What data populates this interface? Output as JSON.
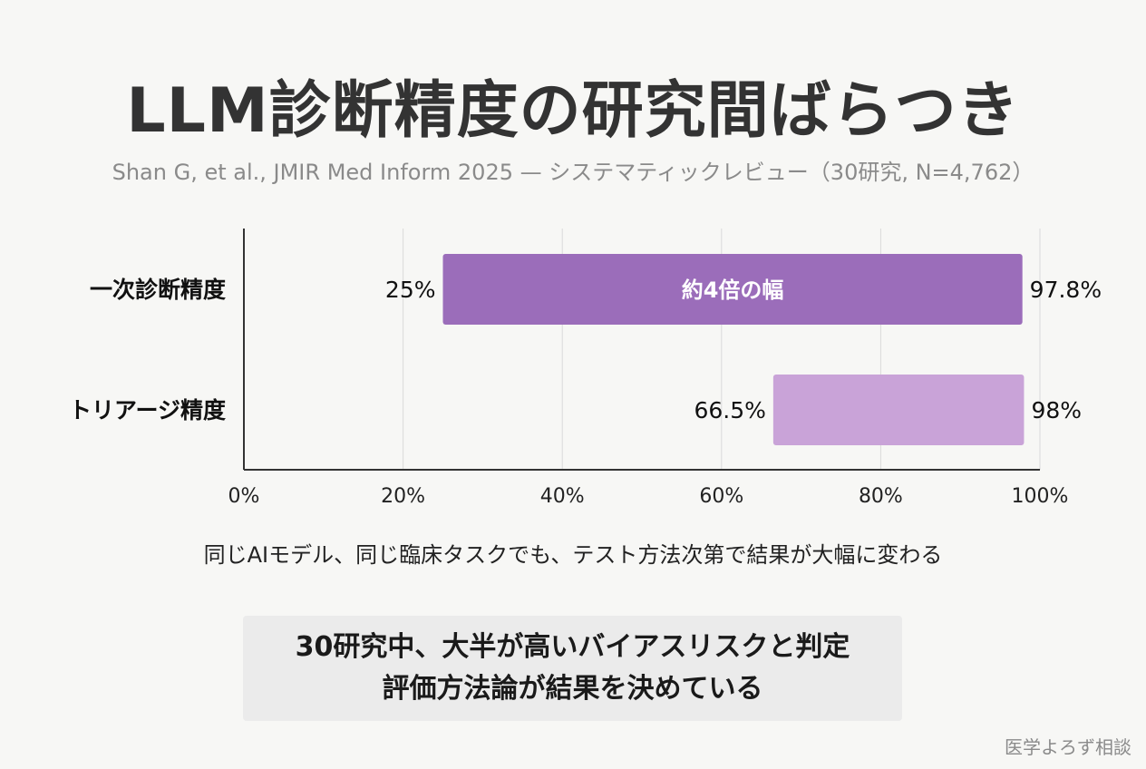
{
  "title": "LLM診断精度の研究間ばらつき",
  "subtitle": "Shan G, et al., JMIR Med Inform 2025 — システマティックレビュー（30研究, N=4,762）",
  "chart_data": {
    "type": "bar",
    "orientation": "horizontal-range",
    "categories": [
      "一次診断精度",
      "トリアージ精度"
    ],
    "ranges": [
      {
        "label": "一次診断精度",
        "low": 25,
        "high": 97.8,
        "low_label": "25%",
        "high_label": "97.8%",
        "annotation": "約4倍の幅",
        "color": "#9b6dba"
      },
      {
        "label": "トリアージ精度",
        "low": 66.5,
        "high": 98,
        "low_label": "66.5%",
        "high_label": "98%",
        "annotation": "",
        "color": "#c9a3d8"
      }
    ],
    "xlim": [
      0,
      100
    ],
    "xticks": [
      {
        "value": 0,
        "label": "0%"
      },
      {
        "value": 20,
        "label": "20%"
      },
      {
        "value": 40,
        "label": "40%"
      },
      {
        "value": 60,
        "label": "60%"
      },
      {
        "value": 80,
        "label": "80%"
      },
      {
        "value": 100,
        "label": "100%"
      }
    ],
    "grid": true
  },
  "caption": "同じAIモデル、同じ臨床タスクでも、テスト方法次第で結果が大幅に変わる",
  "callout": {
    "line1": "30研究中、大半が高いバイアスリスクと判定",
    "line2": "評価方法論が結果を決めている"
  },
  "brand": "医学よろず相談"
}
